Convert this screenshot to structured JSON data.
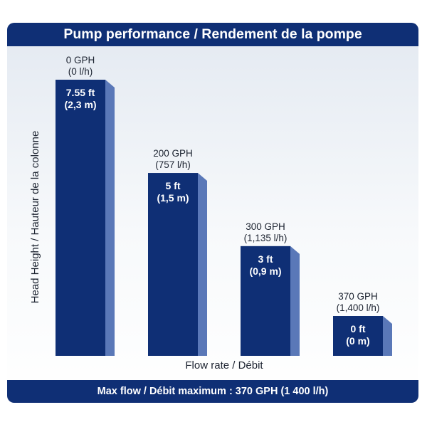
{
  "header": {
    "title": "Pump performance / Rendement de la pompe"
  },
  "footer": {
    "text": "Max flow / Débit maximum : 370 GPH (1 400 l/h)"
  },
  "chart_data": {
    "type": "bar",
    "title": "Pump performance / Rendement de la pompe",
    "xlabel": "Flow rate / Débit",
    "ylabel": "Head Height / Hauteur de la colonne",
    "categories": [
      "0 GPH",
      "200 GPH",
      "300 GPH",
      "370 GPH"
    ],
    "category_sublabels": [
      "(0 l/h)",
      "(757 l/h)",
      "(1,135 l/h)",
      "(1,400 l/h)"
    ],
    "values": [
      7.55,
      5,
      3,
      0
    ],
    "value_labels": [
      "7.55 ft",
      "5 ft",
      "3 ft",
      "0 ft"
    ],
    "value_sublabels": [
      "(2,3 m)",
      "(1,5 m)",
      "(0,9 m)",
      "(0 m)"
    ],
    "unit": "ft",
    "ylim": [
      0,
      7.55
    ],
    "grid": false,
    "legend": "none",
    "colors": {
      "bar_front": "#0f2f75",
      "bar_side": "#5a78b8",
      "header": "#0f2f75"
    }
  }
}
